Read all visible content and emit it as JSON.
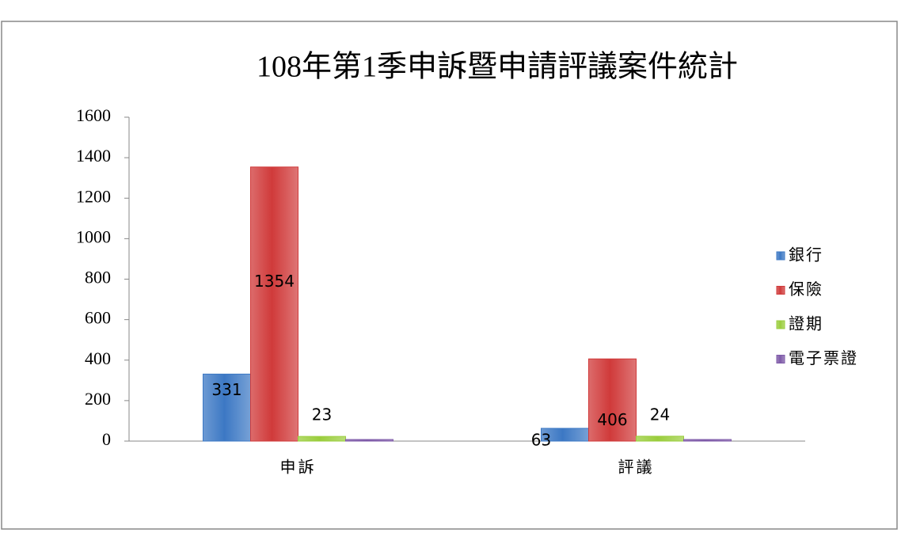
{
  "chart_data": {
    "type": "bar",
    "title": "108年第1季申訴暨申請評議案件統計",
    "categories": [
      "申訴",
      "評議"
    ],
    "series": [
      {
        "name": "銀行",
        "color": "#3c78c4",
        "values": [
          331,
          63
        ],
        "data_labels": true
      },
      {
        "name": "保險",
        "color": "#d03a3a",
        "values": [
          1354,
          406
        ],
        "data_labels": true
      },
      {
        "name": "證期",
        "color": "#9acd3c",
        "values": [
          23,
          24
        ],
        "data_labels": true
      },
      {
        "name": "電子票證",
        "color": "#7e5aa8",
        "values": [
          0,
          0
        ],
        "data_labels": false
      }
    ],
    "ylim": [
      0,
      1600
    ],
    "yticks": [
      0,
      200,
      400,
      600,
      800,
      1000,
      1200,
      1400,
      1600
    ],
    "grid": false,
    "legend": "right"
  }
}
